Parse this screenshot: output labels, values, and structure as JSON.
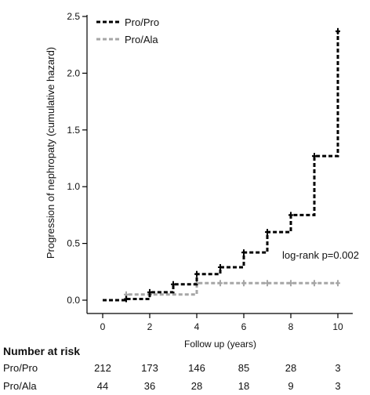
{
  "chart_data": {
    "type": "line",
    "chart_subtype": "step",
    "xlabel": "Follow up (years)",
    "ylabel": "Progression of nephropaty (cumulative hazard)",
    "xlim": [
      0,
      10
    ],
    "ylim": [
      0,
      2.5
    ],
    "x_ticks": [
      "0",
      "2",
      "4",
      "6",
      "8",
      "10"
    ],
    "y_ticks": [
      "0.0",
      "0.5",
      "1.0",
      "1.5",
      "2.0",
      "2.5"
    ],
    "legend_position": "top-left",
    "grid": false,
    "annotation": "log-rank p=0.002",
    "series": [
      {
        "name": "Pro/Pro",
        "color": "#000000",
        "x": [
          0,
          1,
          2,
          3,
          4,
          5,
          6,
          7,
          8,
          9,
          10
        ],
        "y": [
          0,
          0.01,
          0.07,
          0.14,
          0.23,
          0.29,
          0.42,
          0.6,
          0.75,
          1.27,
          2.37
        ],
        "censor_x": [
          1,
          2,
          3,
          4,
          5,
          6,
          7,
          8,
          9,
          10
        ]
      },
      {
        "name": "Pro/Ala",
        "color": "#a6a6a6",
        "x": [
          0,
          1,
          4,
          10
        ],
        "y": [
          0,
          0.05,
          0.15,
          0.15
        ],
        "censor_x": [
          1,
          2,
          4,
          5,
          6,
          7,
          8,
          9,
          10
        ]
      }
    ],
    "risk_table": {
      "title": "Number at risk",
      "rows": [
        {
          "label": "Pro/Pro",
          "values": [
            "212",
            "173",
            "146",
            "85",
            "28",
            "3"
          ]
        },
        {
          "label": "Pro/Ala",
          "values": [
            "44",
            "36",
            "28",
            "18",
            "9",
            "3"
          ]
        }
      ]
    }
  }
}
